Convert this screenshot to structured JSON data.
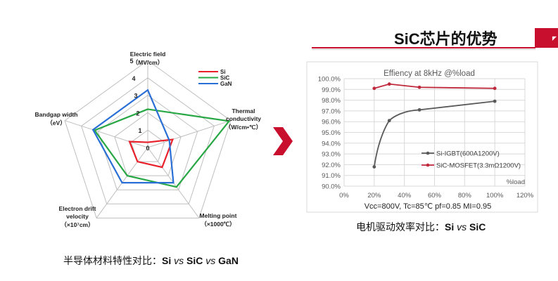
{
  "header": {
    "title": "SiC芯片的优势"
  },
  "chart_data": [
    {
      "type": "radar",
      "axes": [
        {
          "name": "Electric field",
          "unit": "（MV/cm）"
        },
        {
          "name": "Thermal conductivity",
          "unit": "（W/cm•℃）"
        },
        {
          "name": "Melting point",
          "unit": "（×1000℃）"
        },
        {
          "name": "Electron drift velocity",
          "unit": "（×10⁷cm）"
        },
        {
          "name": "Bandgap width",
          "unit": "（eV）"
        }
      ],
      "ticks": [
        "0",
        "1",
        "2",
        "3",
        "4",
        "5"
      ],
      "rmax": 5,
      "legend": [
        "Si",
        "SiC",
        "GaN"
      ],
      "series": [
        {
          "name": "Si",
          "color": "#e8202a",
          "values": [
            0.3,
            1.5,
            1.4,
            1.0,
            1.1
          ]
        },
        {
          "name": "SiC",
          "color": "#28a745",
          "values": [
            2.2,
            4.9,
            2.8,
            2.0,
            3.2
          ]
        },
        {
          "name": "GaN",
          "color": "#2a6fd6",
          "values": [
            3.3,
            1.3,
            2.5,
            2.5,
            3.3
          ]
        }
      ]
    },
    {
      "type": "line",
      "title": "Effiency at 8kHz @%load",
      "xlabel": "%load",
      "x_ticks": [
        "0%",
        "20%",
        "40%",
        "60%",
        "80%",
        "100%",
        "120%"
      ],
      "y_ticks": [
        "90.0%",
        "91.0%",
        "92.0%",
        "93.0%",
        "94.0%",
        "95.0%",
        "96.0%",
        "97.0%",
        "98.0%",
        "99.0%",
        "100.0%"
      ],
      "xlim": [
        0,
        120
      ],
      "ylim": [
        90,
        100
      ],
      "grid": true,
      "legend_position": "right",
      "series": [
        {
          "name": "Si-IGBT(600A1200V)",
          "color": "#595959",
          "x": [
            20,
            30,
            50,
            100
          ],
          "y": [
            91.8,
            96.1,
            97.1,
            97.9
          ]
        },
        {
          "name": "SiC-MOSFET(3.3mΩ1200V)",
          "color": "#c0283c",
          "x": [
            20,
            30,
            50,
            100
          ],
          "y": [
            99.1,
            99.5,
            99.2,
            99.1
          ]
        }
      ],
      "note": "Vcc=800V, Tc=85℃ pf=0.85 MI=0.95"
    }
  ],
  "captions": {
    "left": {
      "prefix": "半导体材料特性对比：",
      "a": "Si",
      "vs1": "vs",
      "b": "SiC",
      "vs2": "vs",
      "c": "GaN"
    },
    "right": {
      "prefix": "电机驱动效率对比：",
      "a": "Si",
      "vs": "vs",
      "b": "SiC"
    }
  },
  "colors": {
    "accent": "#c8102e"
  }
}
